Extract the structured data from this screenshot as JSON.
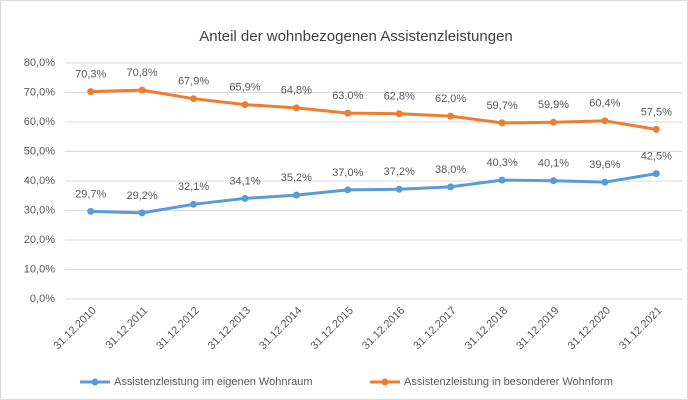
{
  "chart_data": {
    "type": "line",
    "title": "Anteil der wohnbezogenen Assistenzleistungen",
    "categories": [
      "31.12.2010",
      "31.12.2011",
      "31.12.2012",
      "31.12.2013",
      "31.12.2014",
      "31.12.2015",
      "31.12.2016",
      "31.12.2017",
      "31.12.2018",
      "31.12.2019",
      "31.12.2020",
      "31.12.2021"
    ],
    "series": [
      {
        "name": "Assistenzleistung im eigenen Wohnraum",
        "color": "#5b9bd5",
        "values": [
          29.7,
          29.2,
          32.1,
          34.1,
          35.2,
          37.0,
          37.2,
          38.0,
          40.3,
          40.1,
          39.6,
          42.5
        ],
        "value_labels": [
          "29,7%",
          "29,2%",
          "32,1%",
          "34,1%",
          "35,2%",
          "37,0%",
          "37,2%",
          "38,0%",
          "40,3%",
          "40,1%",
          "39,6%",
          "42,5%"
        ]
      },
      {
        "name": "Assistenzleistung in besonderer Wohnform",
        "color": "#ed7d31",
        "values": [
          70.3,
          70.8,
          67.9,
          65.9,
          64.8,
          63.0,
          62.8,
          62.0,
          59.7,
          59.9,
          60.4,
          57.5
        ],
        "value_labels": [
          "70,3%",
          "70,8%",
          "67,9%",
          "65,9%",
          "64,8%",
          "63,0%",
          "62,8%",
          "62,0%",
          "59,7%",
          "59,9%",
          "60,4%",
          "57,5%"
        ]
      }
    ],
    "ylim": [
      0,
      80
    ],
    "yticks": [
      {
        "value": 0,
        "label": "0,0%"
      },
      {
        "value": 10,
        "label": "10,0%"
      },
      {
        "value": 20,
        "label": "20,0%"
      },
      {
        "value": 30,
        "label": "30,0%"
      },
      {
        "value": 40,
        "label": "40,0%"
      },
      {
        "value": 50,
        "label": "50,0%"
      },
      {
        "value": 60,
        "label": "60,0%"
      },
      {
        "value": 70,
        "label": "70,0%"
      },
      {
        "value": 80,
        "label": "80,0%"
      }
    ],
    "grid": true,
    "legend": "bottom"
  }
}
